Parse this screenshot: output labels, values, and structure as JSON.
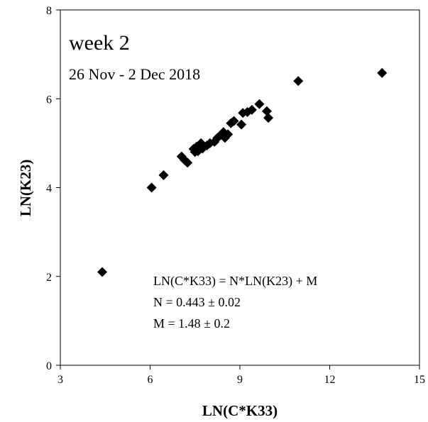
{
  "chart_data": {
    "type": "scatter",
    "xlabel": "LN(C*K33)",
    "ylabel": "LN(K23)",
    "xlim": [
      3,
      15
    ],
    "ylim": [
      0,
      8
    ],
    "xticks": [
      3,
      6,
      9,
      12,
      15
    ],
    "yticks": [
      0,
      2,
      4,
      6,
      8
    ],
    "grid": false,
    "marker": "diamond",
    "marker_color": "#000000",
    "annotations": {
      "week": "week 2",
      "dates": "26 Nov - 2 Dec 2018",
      "equation": "LN(C*K33) = N*LN(K23)  +  M",
      "n_value": "N = 0.443 ± 0.02",
      "m_value": "M = 1.48 ± 0.2"
    },
    "points": [
      {
        "x": 4.4,
        "y": 2.1
      },
      {
        "x": 6.05,
        "y": 4.0
      },
      {
        "x": 6.45,
        "y": 4.28
      },
      {
        "x": 7.05,
        "y": 4.7
      },
      {
        "x": 7.15,
        "y": 4.62
      },
      {
        "x": 7.25,
        "y": 4.56
      },
      {
        "x": 7.45,
        "y": 4.87
      },
      {
        "x": 7.5,
        "y": 4.8
      },
      {
        "x": 7.55,
        "y": 4.92
      },
      {
        "x": 7.6,
        "y": 4.82
      },
      {
        "x": 7.7,
        "y": 5.0
      },
      {
        "x": 7.75,
        "y": 4.88
      },
      {
        "x": 7.9,
        "y": 4.95
      },
      {
        "x": 8.0,
        "y": 5.0
      },
      {
        "x": 8.15,
        "y": 5.03
      },
      {
        "x": 8.25,
        "y": 5.12
      },
      {
        "x": 8.35,
        "y": 5.18
      },
      {
        "x": 8.45,
        "y": 5.25
      },
      {
        "x": 8.5,
        "y": 5.12
      },
      {
        "x": 8.6,
        "y": 5.2
      },
      {
        "x": 8.7,
        "y": 5.45
      },
      {
        "x": 8.8,
        "y": 5.5
      },
      {
        "x": 9.05,
        "y": 5.42
      },
      {
        "x": 9.1,
        "y": 5.68
      },
      {
        "x": 9.25,
        "y": 5.7
      },
      {
        "x": 9.4,
        "y": 5.75
      },
      {
        "x": 9.65,
        "y": 5.88
      },
      {
        "x": 9.9,
        "y": 5.72
      },
      {
        "x": 9.95,
        "y": 5.57
      },
      {
        "x": 10.95,
        "y": 6.4
      },
      {
        "x": 13.75,
        "y": 6.58
      }
    ]
  }
}
